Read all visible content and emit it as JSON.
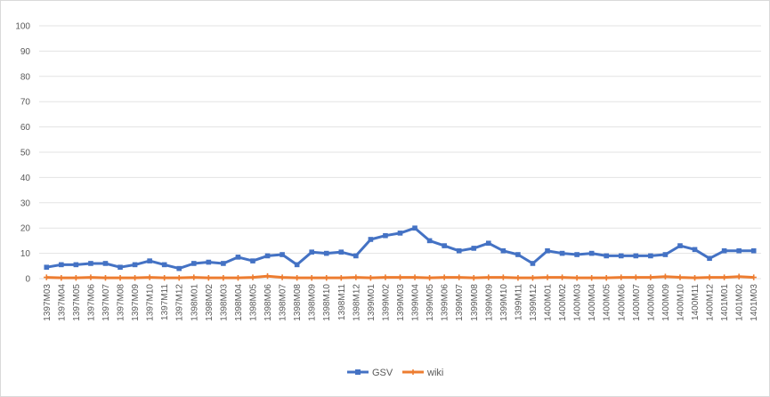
{
  "chart_data": {
    "type": "line",
    "title": "",
    "xlabel": "",
    "ylabel": "",
    "ylim": [
      0,
      100
    ],
    "yticks": [
      0,
      10,
      20,
      30,
      40,
      50,
      60,
      70,
      80,
      90,
      100
    ],
    "grid": "horizontal",
    "legend": "bottom",
    "categories": [
      "1397M03",
      "1397M04",
      "1397M05",
      "1397M06",
      "1397M07",
      "1397M08",
      "1397M09",
      "1397M10",
      "1397M11",
      "1397M12",
      "1398M01",
      "1398M02",
      "1398M03",
      "1398M04",
      "1398M05",
      "1398M06",
      "1398M07",
      "1398M08",
      "1398M09",
      "1398M10",
      "1398M11",
      "1398M12",
      "1399M01",
      "1399M02",
      "1399M03",
      "1399M04",
      "1399M05",
      "1399M06",
      "1399M07",
      "1399M08",
      "1399M09",
      "1399M10",
      "1399M11",
      "1399M12",
      "1400M01",
      "1400M02",
      "1400M03",
      "1400M04",
      "1400M05",
      "1400M06",
      "1400M07",
      "1400M08",
      "1400M09",
      "1400M10",
      "1400M11",
      "1400M12",
      "1401M01",
      "1401M02",
      "1401M03"
    ],
    "series": [
      {
        "name": "GSV",
        "color": "#4472c4",
        "values": [
          4.5,
          5.5,
          5.5,
          6,
          6,
          4.5,
          5.5,
          7,
          5.5,
          4,
          6,
          6.5,
          6,
          8.5,
          7,
          9,
          9.5,
          5.5,
          10.5,
          10,
          10.5,
          9,
          15.5,
          17,
          18,
          20,
          15,
          13,
          11,
          12,
          14,
          11,
          9.5,
          6,
          11,
          10,
          9.5,
          10,
          9,
          9,
          9,
          9,
          9.5,
          13,
          11.5,
          8,
          11,
          11,
          11
        ]
      },
      {
        "name": "wiki",
        "color": "#ed7d31",
        "values": [
          0.5,
          0.3,
          0.3,
          0.5,
          0.3,
          0.3,
          0.3,
          0.5,
          0.3,
          0.3,
          0.5,
          0.3,
          0.3,
          0.3,
          0.5,
          1,
          0.5,
          0.3,
          0.3,
          0.3,
          0.3,
          0.5,
          0.3,
          0.5,
          0.5,
          0.5,
          0.3,
          0.5,
          0.5,
          0.3,
          0.5,
          0.5,
          0.3,
          0.3,
          0.5,
          0.5,
          0.3,
          0.3,
          0.3,
          0.5,
          0.5,
          0.5,
          0.8,
          0.5,
          0.3,
          0.5,
          0.5,
          0.8,
          0.5
        ]
      }
    ]
  }
}
